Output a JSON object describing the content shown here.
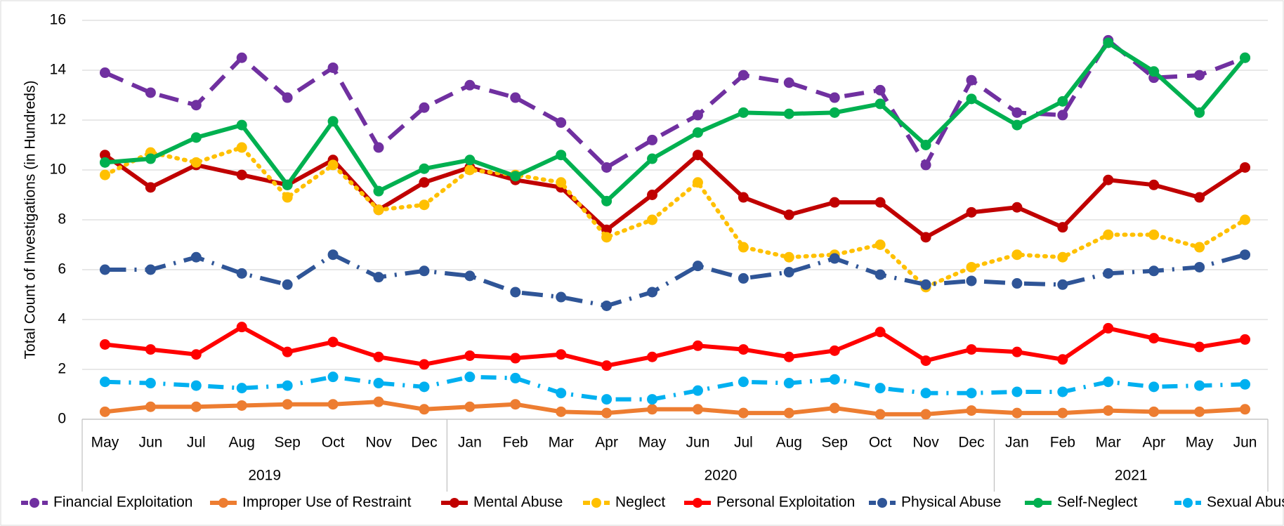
{
  "chart_data": {
    "type": "line",
    "y_label": "Total Count of  Investigations (in Hundreds)",
    "groups": [
      {
        "label": "2019",
        "categories": [
          "May",
          "Jun",
          "Jul",
          "Aug",
          "Sep",
          "Oct",
          "Nov",
          "Dec"
        ]
      },
      {
        "label": "2020",
        "categories": [
          "Jan",
          "Feb",
          "Mar",
          "Apr",
          "May",
          "Jun",
          "Jul",
          "Aug",
          "Sep",
          "Oct",
          "Nov",
          "Dec"
        ]
      },
      {
        "label": "2021",
        "categories": [
          "Jan",
          "Feb",
          "Mar",
          "Apr",
          "May",
          "Jun"
        ]
      }
    ],
    "ylim": [
      0,
      16
    ],
    "yticks": [
      0,
      2,
      4,
      6,
      8,
      10,
      12,
      14,
      16
    ],
    "grid": true,
    "legend": "bottom",
    "series": [
      {
        "name": "Financial Exploitation",
        "color": "#7030a0",
        "dash": "long-dash",
        "values": [
          13.9,
          13.1,
          12.6,
          14.5,
          12.9,
          14.1,
          10.9,
          12.5,
          13.4,
          12.9,
          11.9,
          10.1,
          11.2,
          12.2,
          13.8,
          13.5,
          12.9,
          13.2,
          10.2,
          13.6,
          12.3,
          12.2,
          15.2,
          13.7,
          13.8,
          14.5
        ]
      },
      {
        "name": "Improper Use of Restraint",
        "color": "#ed7d31",
        "dash": "solid",
        "values": [
          0.3,
          0.5,
          0.5,
          0.55,
          0.6,
          0.6,
          0.7,
          0.4,
          0.5,
          0.6,
          0.3,
          0.25,
          0.4,
          0.4,
          0.25,
          0.25,
          0.45,
          0.2,
          0.2,
          0.35,
          0.25,
          0.25,
          0.35,
          0.3,
          0.3,
          0.4
        ]
      },
      {
        "name": "Mental Abuse",
        "color": "#c00000",
        "dash": "solid",
        "values": [
          10.6,
          9.3,
          10.2,
          9.8,
          9.4,
          10.4,
          8.4,
          9.5,
          10.1,
          9.6,
          9.3,
          7.6,
          9.0,
          10.6,
          8.9,
          8.2,
          8.7,
          8.7,
          7.3,
          8.3,
          8.5,
          7.7,
          9.6,
          9.4,
          8.9,
          10.1
        ]
      },
      {
        "name": "Neglect",
        "color": "#ffc000",
        "dash": "dot",
        "values": [
          9.8,
          10.7,
          10.3,
          10.9,
          8.9,
          10.2,
          8.4,
          8.6,
          10.0,
          9.8,
          9.5,
          7.3,
          8.0,
          9.5,
          6.9,
          6.5,
          6.6,
          7.0,
          5.3,
          6.1,
          6.6,
          6.5,
          7.4,
          7.4,
          6.9,
          8.0
        ]
      },
      {
        "name": "Personal Exploitation",
        "color": "#ff0000",
        "dash": "solid",
        "values": [
          3.0,
          2.8,
          2.6,
          3.7,
          2.7,
          3.1,
          2.5,
          2.2,
          2.55,
          2.45,
          2.6,
          2.15,
          2.5,
          2.95,
          2.8,
          2.5,
          2.75,
          3.5,
          2.35,
          2.8,
          2.7,
          2.4,
          3.65,
          3.25,
          2.9,
          3.2
        ]
      },
      {
        "name": "Physical Abuse",
        "color": "#2f5597",
        "dash": "long-dash-dot",
        "values": [
          6.0,
          6.0,
          6.5,
          5.85,
          5.4,
          6.6,
          5.7,
          5.95,
          5.75,
          5.1,
          4.9,
          4.55,
          5.1,
          6.15,
          5.65,
          5.9,
          6.45,
          5.8,
          5.4,
          5.55,
          5.45,
          5.4,
          5.85,
          5.95,
          6.1,
          6.6
        ]
      },
      {
        "name": "Self-Neglect",
        "color": "#00b050",
        "dash": "solid",
        "values": [
          10.3,
          10.45,
          11.3,
          11.8,
          9.4,
          11.95,
          9.15,
          10.05,
          10.4,
          9.75,
          10.6,
          8.75,
          10.45,
          11.5,
          12.3,
          12.25,
          12.3,
          12.65,
          11.0,
          12.85,
          11.8,
          12.75,
          15.1,
          13.95,
          12.3,
          14.5
        ]
      },
      {
        "name": "Sexual Abuse",
        "color": "#00b0f0",
        "dash": "dash-dot",
        "values": [
          1.5,
          1.45,
          1.35,
          1.25,
          1.35,
          1.7,
          1.45,
          1.3,
          1.7,
          1.65,
          1.05,
          0.8,
          0.8,
          1.15,
          1.5,
          1.45,
          1.6,
          1.25,
          1.05,
          1.05,
          1.1,
          1.1,
          1.5,
          1.3,
          1.35,
          1.4
        ]
      }
    ]
  }
}
